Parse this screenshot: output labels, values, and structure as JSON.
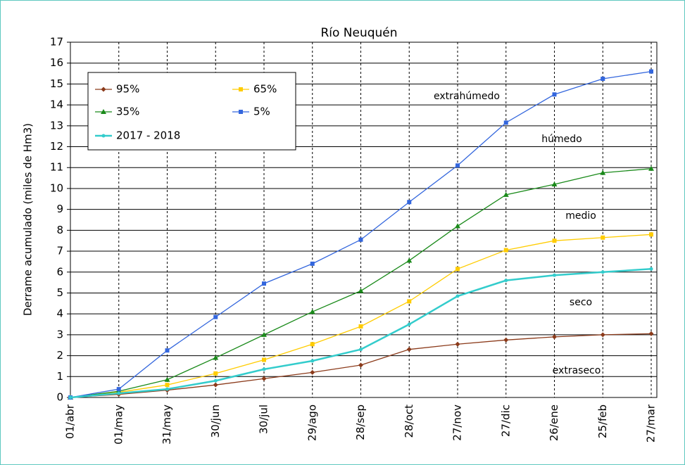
{
  "chart_data": {
    "type": "line",
    "title": "Río Neuquén",
    "y_label": "Derrame acumulado (miles de Hm3)",
    "categories": [
      "01/abr",
      "01/may",
      "31/may",
      "30/jun",
      "30/jul",
      "29/ago",
      "28/sep",
      "28/oct",
      "27/nov",
      "27/dic",
      "26/ene",
      "25/feb",
      "27/mar"
    ],
    "series": [
      {
        "name": "95%",
        "color": "#8b3a1a",
        "marker": "diamond",
        "values": [
          0,
          0.15,
          0.35,
          0.6,
          0.9,
          1.2,
          1.55,
          2.3,
          2.55,
          2.75,
          2.9,
          3.0,
          3.05
        ]
      },
      {
        "name": "65%",
        "color": "#ffcc00",
        "marker": "square",
        "values": [
          0,
          0.25,
          0.6,
          1.15,
          1.8,
          2.55,
          3.4,
          4.6,
          6.15,
          7.05,
          7.5,
          7.65,
          7.8
        ]
      },
      {
        "name": "35%",
        "color": "#1a8a1a",
        "marker": "triangle",
        "values": [
          0,
          0.3,
          0.85,
          1.9,
          3.0,
          4.1,
          5.1,
          6.55,
          8.2,
          9.7,
          10.2,
          10.75,
          10.95
        ]
      },
      {
        "name": "5%",
        "color": "#3366dd",
        "marker": "square",
        "values": [
          0,
          0.4,
          2.25,
          3.85,
          5.45,
          6.4,
          7.55,
          9.35,
          11.1,
          13.15,
          14.5,
          15.25,
          15.6
        ]
      },
      {
        "name": "2017 - 2018",
        "color": "#33cccc",
        "marker": "circle",
        "values": [
          0,
          0.2,
          0.4,
          0.8,
          1.35,
          1.75,
          2.3,
          3.5,
          4.85,
          5.6,
          5.85,
          6.0,
          6.15
        ]
      }
    ],
    "annotations": [
      "extrahúmedo",
      "húmedo",
      "medio",
      "seco",
      "extraseco"
    ],
    "ylim": [
      0,
      17
    ],
    "yticks": [
      0,
      1,
      2,
      3,
      4,
      5,
      6,
      7,
      8,
      9,
      10,
      11,
      12,
      13,
      14,
      15,
      16,
      17
    ],
    "grid": true
  }
}
